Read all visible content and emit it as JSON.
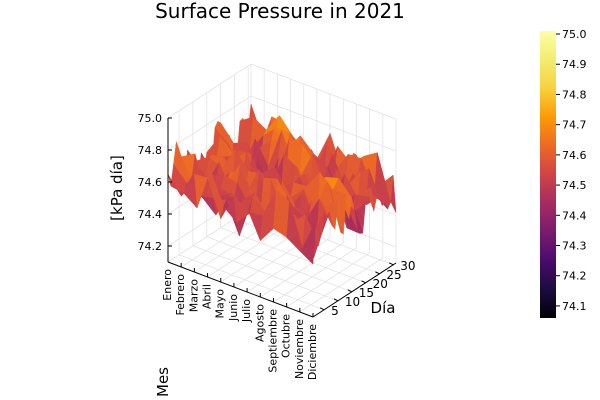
{
  "chart_data": {
    "type": "surface",
    "title": "Surface Pressure in 2021",
    "xlabel": "Mes",
    "ylabel": "Día",
    "zlabel": "[kPa día]",
    "x_categories": [
      "Enero",
      "Febrero",
      "Marzo",
      "Abril",
      "Mayo",
      "Junio",
      "Julio",
      "Agosto",
      "Septiembre",
      "Octubre",
      "Noviembre",
      "Diciembre"
    ],
    "y_ticks": [
      "5",
      "10",
      "15",
      "20",
      "25",
      "30"
    ],
    "y_range": [
      1,
      31
    ],
    "z_ticks": [
      "74.2",
      "74.4",
      "74.6",
      "74.8",
      "75.0"
    ],
    "z_range": [
      74.1,
      75.0
    ],
    "colorbar": {
      "colormap": "inferno",
      "ticks": [
        "74.1",
        "74.2",
        "74.3",
        "74.4",
        "74.5",
        "74.6",
        "74.7",
        "74.8",
        "74.9",
        "75.0"
      ],
      "range": [
        74.06,
        75.01
      ]
    },
    "grid": true,
    "z_summary": {
      "typical_range": [
        74.4,
        74.8
      ],
      "min_approx": 74.1,
      "max_approx": 75.0
    }
  }
}
